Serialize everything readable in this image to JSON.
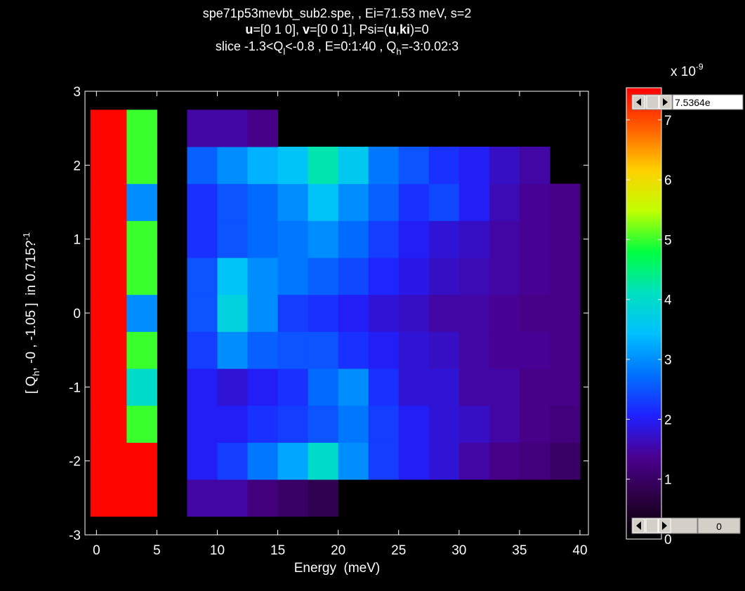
{
  "chart_data": {
    "type": "heatmap",
    "title": [
      [
        "spe71p53mevbt_sub2.spe, , Ei=71.53 meV, s=2"
      ],
      [
        "u",
        "=[0 1 0], ",
        "v",
        "=[0 0 1], Psi=(",
        "u",
        ",",
        "ki",
        ")=0"
      ],
      [
        "slice -1.3<Q",
        "l",
        "<-0.8 , E=0:1:40 , Q",
        "h",
        "=-3:0.02:3"
      ]
    ],
    "x_label": "Energy  (meV)",
    "y_label": [
      "[ Q",
      "h",
      ", -0 , -1.05 ]  in 0.715?",
      "-1"
    ],
    "xlim": [
      -0.95,
      40.7
    ],
    "ylim": [
      -3,
      3
    ],
    "xticks": [
      0,
      5,
      10,
      15,
      20,
      25,
      30,
      35,
      40
    ],
    "yticks": [
      -3,
      -2,
      -1,
      0,
      1,
      2,
      3
    ],
    "x_edges": [
      -0.5,
      2.5,
      5,
      7.5,
      10,
      12.5,
      15,
      17.5,
      20,
      22.5,
      25,
      27.5,
      30,
      32.5,
      35,
      37.5,
      40
    ],
    "y_edges": [
      -2.75,
      -2.25,
      -1.75,
      -1.25,
      -0.75,
      -0.25,
      0.25,
      0.75,
      1.25,
      1.75,
      2.25,
      2.75
    ],
    "z": [
      [
        7.5,
        7.5,
        null,
        1.5,
        1.5,
        1.2,
        1.0,
        0.8,
        null,
        null,
        null,
        null,
        null,
        null,
        null,
        null
      ],
      [
        7.5,
        7.5,
        null,
        2,
        2.3,
        2.8,
        3.2,
        4,
        3,
        2.3,
        2,
        1.8,
        1.5,
        1.3,
        1.2,
        1.0
      ],
      [
        7.5,
        5,
        null,
        2,
        2,
        2.2,
        2.3,
        2.5,
        2.8,
        2.3,
        2,
        1.8,
        1.7,
        1.5,
        1.3,
        1.2
      ],
      [
        7.5,
        4,
        null,
        2,
        1.8,
        2,
        2.2,
        2.7,
        3,
        2.2,
        1.8,
        1.8,
        1.5,
        1.5,
        1.3,
        1.3
      ],
      [
        7.5,
        5,
        null,
        2.3,
        3,
        2.6,
        2.5,
        2.5,
        2.2,
        2,
        1.8,
        1.7,
        1.5,
        1.4,
        1.4,
        1.3
      ],
      [
        7.5,
        3,
        null,
        2.5,
        3.8,
        3,
        2.3,
        2.2,
        2,
        1.8,
        1.7,
        1.5,
        1.5,
        1.4,
        1.3,
        1.3
      ],
      [
        7.5,
        5,
        null,
        2.5,
        3.5,
        3,
        2.8,
        2.6,
        2.4,
        2.1,
        1.9,
        1.7,
        1.6,
        1.5,
        1.4,
        1.3
      ],
      [
        7.5,
        5,
        null,
        2.2,
        2.5,
        2.7,
        2.8,
        3,
        2.7,
        2.3,
        2,
        1.8,
        1.7,
        1.5,
        1.4,
        1.3
      ],
      [
        7.5,
        3,
        null,
        2.2,
        2.5,
        2.7,
        3,
        3.5,
        3,
        2.6,
        2.2,
        2.4,
        2,
        1.6,
        1.4,
        1.3
      ],
      [
        7.5,
        5,
        null,
        2.6,
        3,
        3.3,
        3.5,
        4.2,
        3.6,
        2.8,
        2.5,
        2.2,
        2,
        1.7,
        1.5,
        null
      ],
      [
        7.5,
        5,
        null,
        1.5,
        1.5,
        1.3,
        null,
        null,
        null,
        null,
        null,
        null,
        null,
        null,
        null,
        null
      ]
    ],
    "colormap": [
      "#000000",
      "#2a0040",
      "#4a0090",
      "#2020ff",
      "#0070ff",
      "#00c0ff",
      "#00e0c0",
      "#00ff40",
      "#c0ff00",
      "#ffd000",
      "#ff6000",
      "#ff0000"
    ],
    "colorbar": {
      "clim": [
        0,
        7.5364
      ],
      "ticks": [
        0,
        1,
        2,
        3,
        4,
        5,
        6,
        7
      ],
      "scale_label": [
        "x 10",
        "-9"
      ],
      "max_box": "7.5364e",
      "min_box": "0"
    }
  }
}
